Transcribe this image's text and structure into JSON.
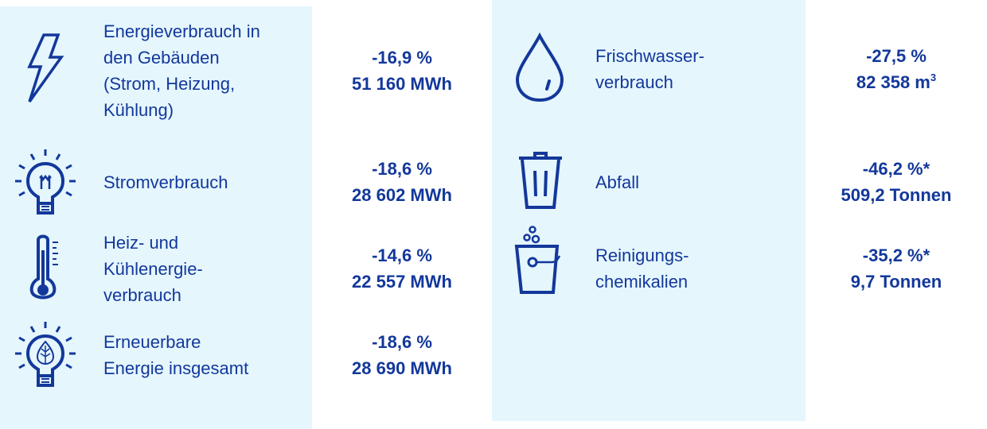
{
  "colors": {
    "text": "#13389b",
    "panel": "#e5f6fd"
  },
  "left": [
    {
      "icon": "lightning-icon",
      "label": [
        "Energieverbrauch in",
        "den Gebäuden",
        "(Strom, Heizung,",
        "Kühlung)"
      ],
      "change": "-16,9 %",
      "amount": "51 160 MWh"
    },
    {
      "icon": "lightbulb-icon",
      "label": [
        "Stromverbrauch"
      ],
      "change": "-18,6 %",
      "amount": "28 602 MWh"
    },
    {
      "icon": "thermometer-icon",
      "label": [
        "Heiz- und",
        "Kühlenergie-",
        "verbrauch"
      ],
      "change": "-14,6 %",
      "amount": "22 557 MWh"
    },
    {
      "icon": "leaf-lightbulb-icon",
      "label": [
        "Erneuerbare",
        "Energie insgesamt"
      ],
      "change": "-18,6 %",
      "amount": "28 690 MWh"
    }
  ],
  "right": [
    {
      "icon": "water-drop-icon",
      "label": [
        "Frischwasser-",
        "verbrauch"
      ],
      "change": "-27,5 %",
      "amount": "82 358 m",
      "amount_sup": "3"
    },
    {
      "icon": "trash-bin-icon",
      "label": [
        "Abfall"
      ],
      "change": "-46,2 %*",
      "amount": "509,2 Tonnen"
    },
    {
      "icon": "cleaning-bucket-icon",
      "label": [
        "Reinigungs-",
        "chemikalien"
      ],
      "change": "-35,2 %*",
      "amount": "9,7 Tonnen"
    }
  ]
}
